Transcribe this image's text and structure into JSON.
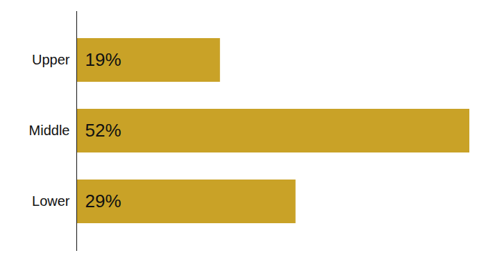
{
  "chart_data": {
    "type": "bar",
    "orientation": "horizontal",
    "categories": [
      "Upper",
      "Middle",
      "Lower"
    ],
    "values": [
      19,
      52,
      29
    ],
    "value_labels": [
      "19%",
      "52%",
      "29%"
    ],
    "data_labels": true,
    "color": "#C9A227",
    "xlim": [
      0,
      52
    ],
    "tick_labels": "y"
  }
}
